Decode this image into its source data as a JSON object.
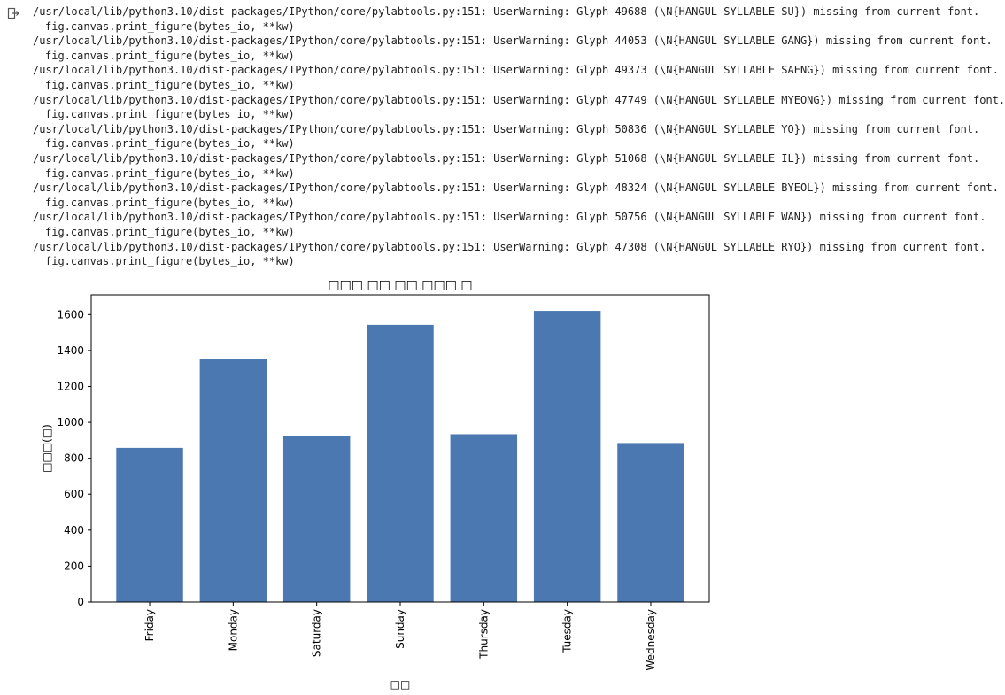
{
  "output": {
    "icon": "output-arrow-icon",
    "warnings": [
      {
        "line": "/usr/local/lib/python3.10/dist-packages/IPython/core/pylabtools.py:151: UserWarning: Glyph 49688 (\\N{HANGUL SYLLABLE SU}) missing from current font.",
        "cont": "fig.canvas.print_figure(bytes_io, **kw)"
      },
      {
        "line": "/usr/local/lib/python3.10/dist-packages/IPython/core/pylabtools.py:151: UserWarning: Glyph 44053 (\\N{HANGUL SYLLABLE GANG}) missing from current font.",
        "cont": "fig.canvas.print_figure(bytes_io, **kw)"
      },
      {
        "line": "/usr/local/lib/python3.10/dist-packages/IPython/core/pylabtools.py:151: UserWarning: Glyph 49373 (\\N{HANGUL SYLLABLE SAENG}) missing from current font.",
        "cont": "fig.canvas.print_figure(bytes_io, **kw)"
      },
      {
        "line": "/usr/local/lib/python3.10/dist-packages/IPython/core/pylabtools.py:151: UserWarning: Glyph 47749 (\\N{HANGUL SYLLABLE MYEONG}) missing from current font.",
        "cont": "fig.canvas.print_figure(bytes_io, **kw)"
      },
      {
        "line": "/usr/local/lib/python3.10/dist-packages/IPython/core/pylabtools.py:151: UserWarning: Glyph 50836 (\\N{HANGUL SYLLABLE YO}) missing from current font.",
        "cont": "fig.canvas.print_figure(bytes_io, **kw)"
      },
      {
        "line": "/usr/local/lib/python3.10/dist-packages/IPython/core/pylabtools.py:151: UserWarning: Glyph 51068 (\\N{HANGUL SYLLABLE IL}) missing from current font.",
        "cont": "fig.canvas.print_figure(bytes_io, **kw)"
      },
      {
        "line": "/usr/local/lib/python3.10/dist-packages/IPython/core/pylabtools.py:151: UserWarning: Glyph 48324 (\\N{HANGUL SYLLABLE BYEOL}) missing from current font.",
        "cont": "fig.canvas.print_figure(bytes_io, **kw)"
      },
      {
        "line": "/usr/local/lib/python3.10/dist-packages/IPython/core/pylabtools.py:151: UserWarning: Glyph 50756 (\\N{HANGUL SYLLABLE WAN}) missing from current font.",
        "cont": "fig.canvas.print_figure(bytes_io, **kw)"
      },
      {
        "line": "/usr/local/lib/python3.10/dist-packages/IPython/core/pylabtools.py:151: UserWarning: Glyph 47308 (\\N{HANGUL SYLLABLE RYO}) missing from current font.",
        "cont": "fig.canvas.print_figure(bytes_io, **kw)"
      }
    ]
  },
  "chart_data": {
    "type": "bar",
    "title": "□□□ □□ □□ □□□ □",
    "xlabel": "□□",
    "ylabel": "□□□(□)",
    "categories": [
      "Friday",
      "Monday",
      "Saturday",
      "Sunday",
      "Thursday",
      "Tuesday",
      "Wednesday"
    ],
    "values": [
      858,
      1351,
      924,
      1543,
      934,
      1621,
      885
    ],
    "ylim": [
      0,
      1710
    ],
    "yticks": [
      0,
      200,
      400,
      600,
      800,
      1000,
      1200,
      1400,
      1600
    ],
    "bar_color": "#4c78b1",
    "grid": false,
    "xtick_rotation": "vertical"
  }
}
